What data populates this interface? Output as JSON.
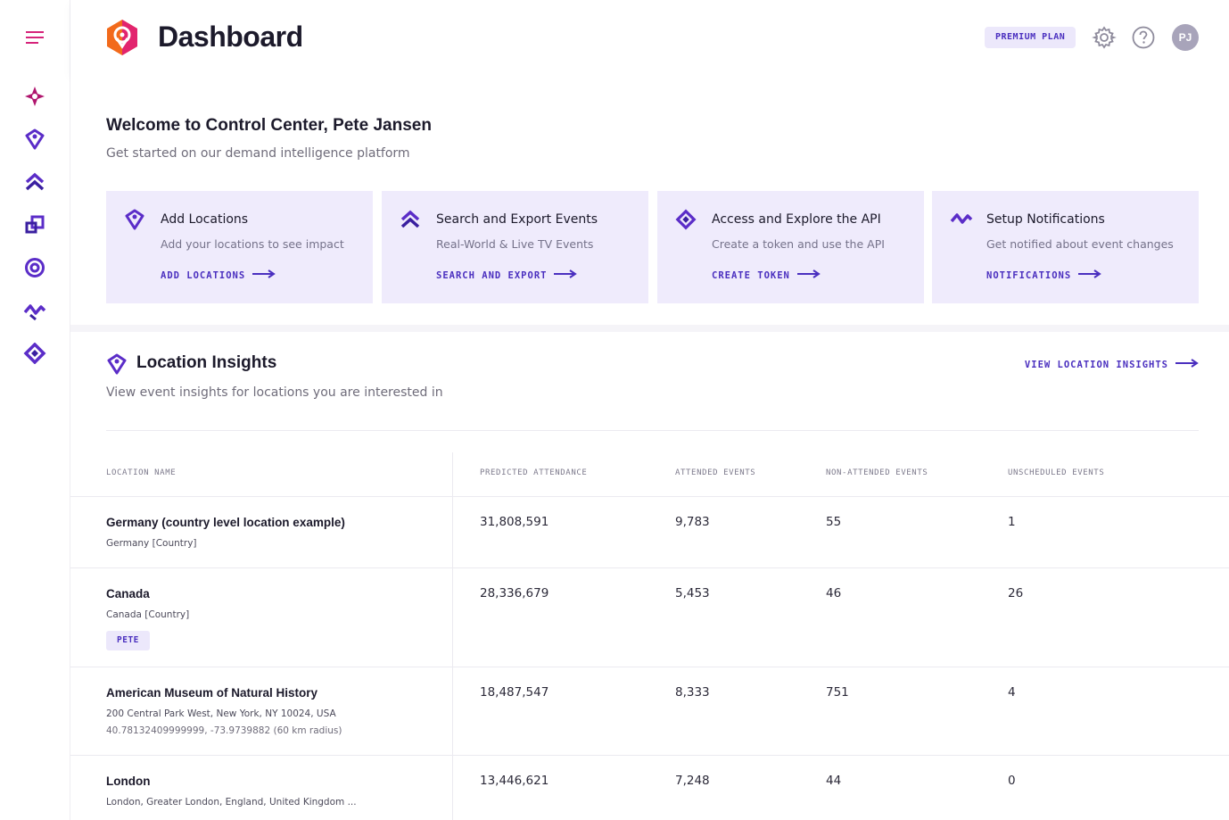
{
  "header": {
    "title": "Dashboard",
    "plan_badge": "PREMIUM PLAN",
    "avatar_initials": "PJ"
  },
  "sidebar": {
    "items": [
      {
        "icon": "menu-icon"
      },
      {
        "icon": "sparkle-icon"
      },
      {
        "icon": "location-pin-icon"
      },
      {
        "icon": "double-chevron-up-icon"
      },
      {
        "icon": "export-squares-icon"
      },
      {
        "icon": "target-icon"
      },
      {
        "icon": "pulse-icon"
      },
      {
        "icon": "api-diamond-icon"
      }
    ]
  },
  "welcome": {
    "title": "Welcome to Control Center, Pete Jansen",
    "subtitle": "Get started on our demand intelligence platform",
    "cards": [
      {
        "title": "Add Locations",
        "desc": "Add your locations to see impact",
        "link": "ADD LOCATIONS",
        "icon": "location-pin-icon"
      },
      {
        "title": "Search and Export Events",
        "desc": "Real-World & Live TV Events",
        "link": "SEARCH AND EXPORT",
        "icon": "double-chevron-up-icon"
      },
      {
        "title": "Access and Explore the API",
        "desc": "Create a token and use the API",
        "link": "CREATE TOKEN",
        "icon": "api-diamond-icon"
      },
      {
        "title": "Setup Notifications",
        "desc": "Get notified about event changes",
        "link": "NOTIFICATIONS",
        "icon": "pulse-icon"
      }
    ]
  },
  "insights": {
    "title": "Location Insights",
    "subtitle": "View event insights for locations you are interested in",
    "link": "VIEW LOCATION INSIGHTS",
    "columns": [
      "LOCATION NAME",
      "PREDICTED ATTENDANCE",
      "ATTENDED EVENTS",
      "NON-ATTENDED EVENTS",
      "UNSCHEDULED EVENTS"
    ],
    "rows": [
      {
        "name": "Germany (country level location example)",
        "sub1": "Germany [Country]",
        "sub2": "",
        "tag": "",
        "predicted": "31,808,591",
        "attended": "9,783",
        "non_attended": "55",
        "unscheduled": "1"
      },
      {
        "name": "Canada",
        "sub1": "Canada [Country]",
        "sub2": "",
        "tag": "PETE",
        "predicted": "28,336,679",
        "attended": "5,453",
        "non_attended": "46",
        "unscheduled": "26"
      },
      {
        "name": "American Museum of Natural History",
        "sub1": "200 Central Park West, New York, NY 10024, USA",
        "sub2": "40.78132409999999, -73.9739882 (60 km radius)",
        "tag": "",
        "predicted": "18,487,547",
        "attended": "8,333",
        "non_attended": "751",
        "unscheduled": "4"
      },
      {
        "name": "London",
        "sub1": "London, Greater London, England, United Kingdom ...",
        "sub2": "",
        "tag": "",
        "predicted": "13,446,621",
        "attended": "7,248",
        "non_attended": "44",
        "unscheduled": "0"
      }
    ]
  },
  "colors": {
    "accent": "#4a2fbf",
    "pink": "#d6237a",
    "card_bg": "#efebfc",
    "logo_orange": "#f26a1b"
  }
}
